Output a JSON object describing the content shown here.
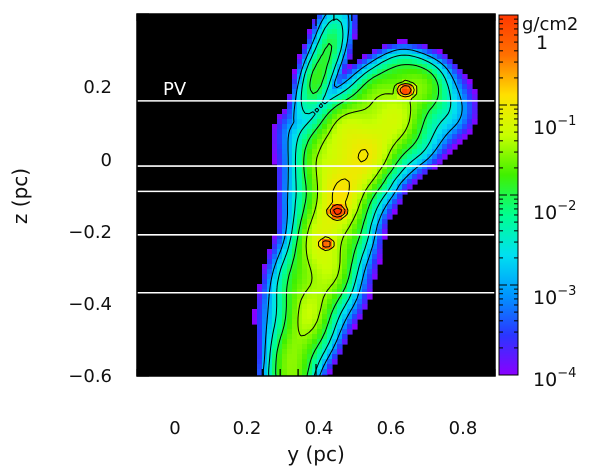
{
  "chart_data": {
    "type": "heatmap",
    "xlabel": "y (pc)",
    "ylabel": "z (pc)",
    "xlim": [
      -0.1,
      0.9
    ],
    "ylim": [
      -0.6,
      0.4
    ],
    "x_ticks": [
      0,
      0.2,
      0.4,
      0.6,
      0.8
    ],
    "x_tick_labels": [
      "0",
      "0.2",
      "0.4",
      "0.6",
      "0.8"
    ],
    "y_ticks": [
      0.2,
      0,
      -0.2,
      -0.4,
      -0.6
    ],
    "y_tick_labels": [
      "0.2",
      "0",
      "−0.2",
      "−0.4",
      "−0.6"
    ],
    "background_color": "#000000",
    "colorbar": {
      "unit_label": "g/cm2",
      "scale": "log",
      "range": [
        0.0001,
        1
      ],
      "tick_labels": [
        {
          "value": 1,
          "mantissa": "1",
          "exponent": ""
        },
        {
          "value": 0.1,
          "mantissa": "10",
          "exponent": "−1"
        },
        {
          "value": 0.01,
          "mantissa": "10",
          "exponent": "−2"
        },
        {
          "value": 0.001,
          "mantissa": "10",
          "exponent": "−3"
        },
        {
          "value": 0.0001,
          "mantissa": "10",
          "exponent": "−4"
        }
      ],
      "colors": [
        "#8a00ff",
        "#2a36ff",
        "#0096ff",
        "#00e0f0",
        "#00ff90",
        "#40f000",
        "#c8ff00",
        "#ffe000",
        "#ff7000",
        "#ff3800"
      ]
    },
    "annotation": "PV",
    "pv_cut_z": [
      0.16,
      -0.02,
      -0.09,
      -0.21,
      -0.37
    ],
    "ridge": [
      [
        0.33,
        -0.6
      ],
      [
        0.4,
        -0.35
      ],
      [
        0.45,
        -0.15
      ],
      [
        0.5,
        0.0
      ],
      [
        0.58,
        0.1
      ],
      [
        0.65,
        0.19
      ]
    ],
    "peaks": [
      {
        "y": 0.46,
        "z": -0.145,
        "log_sigma": 0.2
      },
      {
        "y": 0.65,
        "z": 0.19,
        "log_sigma": 0.0
      },
      {
        "y": 0.43,
        "z": -0.235,
        "log_sigma": -0.2
      }
    ],
    "contour_levels_log": [
      -3,
      -2.5,
      -2,
      -1.5,
      -1,
      -0.5,
      0
    ]
  }
}
